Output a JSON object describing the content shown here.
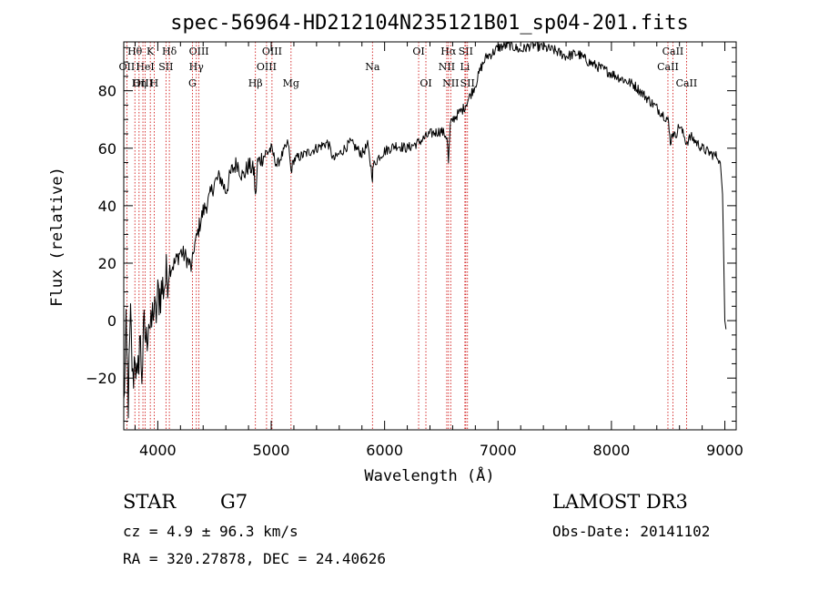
{
  "chart_data": {
    "type": "line",
    "title": "spec-56964-HD212104N235121B01_sp04-201.fits",
    "xlabel": "Wavelength (Å)",
    "ylabel": "Flux (relative)",
    "xlim": [
      3700,
      9100
    ],
    "ylim": [
      -38,
      97
    ],
    "x_ticks": [
      4000,
      5000,
      6000,
      7000,
      8000,
      9000
    ],
    "y_ticks": [
      -20,
      0,
      20,
      40,
      60,
      80
    ],
    "series": [
      {
        "name": "flux",
        "x": [
          3700,
          3720,
          3740,
          3760,
          3780,
          3800,
          3820,
          3840,
          3860,
          3880,
          3900,
          3920,
          3940,
          3960,
          3980,
          4000,
          4050,
          4100,
          4150,
          4200,
          4250,
          4300,
          4320,
          4340,
          4360,
          4400,
          4450,
          4500,
          4550,
          4600,
          4650,
          4700,
          4750,
          4800,
          4850,
          4861,
          4880,
          4950,
          5000,
          5050,
          5100,
          5150,
          5175,
          5200,
          5300,
          5400,
          5500,
          5550,
          5600,
          5650,
          5700,
          5750,
          5800,
          5850,
          5893,
          5900,
          5950,
          6000,
          6100,
          6200,
          6300,
          6400,
          6500,
          6550,
          6563,
          6580,
          6600,
          6650,
          6700,
          6750,
          6800,
          6850,
          6900,
          6950,
          7000,
          7100,
          7200,
          7300,
          7400,
          7500,
          7600,
          7700,
          7800,
          7900,
          8000,
          8100,
          8200,
          8300,
          8400,
          8498,
          8520,
          8542,
          8560,
          8600,
          8662,
          8700,
          8800,
          8880,
          8940,
          8960,
          8980,
          9000,
          9010
        ],
        "y": [
          -30,
          -5,
          -28,
          0,
          -22,
          -10,
          -25,
          -5,
          -18,
          -3,
          -8,
          2,
          -5,
          5,
          0,
          8,
          12,
          18,
          20,
          24,
          22,
          18,
          26,
          28,
          32,
          38,
          42,
          48,
          50,
          45,
          52,
          55,
          50,
          54,
          52,
          42,
          55,
          58,
          60,
          54,
          58,
          62,
          52,
          56,
          58,
          60,
          62,
          56,
          58,
          60,
          62,
          60,
          58,
          61,
          50,
          54,
          57,
          59,
          61,
          60,
          62,
          65,
          66,
          64,
          55,
          68,
          70,
          72,
          74,
          78,
          82,
          88,
          92,
          93,
          95,
          96,
          94,
          96,
          95,
          94,
          92,
          93,
          90,
          88,
          86,
          84,
          82,
          78,
          74,
          70,
          62,
          66,
          64,
          68,
          62,
          64,
          60,
          58,
          57,
          55,
          44,
          0,
          -3
        ]
      }
    ],
    "spectral_lines": [
      {
        "label": "Hθ",
        "w": 3798,
        "row": 0
      },
      {
        "label": "K",
        "w": 3934,
        "row": 0
      },
      {
        "label": "Hδ",
        "w": 4102,
        "row": 0
      },
      {
        "label": "OII",
        "w": 3727,
        "row": 1
      },
      {
        "label": "HeI",
        "w": 3889,
        "row": 1
      },
      {
        "label": "SII",
        "w": 4072,
        "row": 1
      },
      {
        "label": "OIII",
        "w": 3869,
        "row": 2
      },
      {
        "label": "Hη",
        "w": 3835,
        "row": 2
      },
      {
        "label": "H",
        "w": 3968,
        "row": 2
      },
      {
        "label": "OIII",
        "w": 4363,
        "row": 0
      },
      {
        "label": "Hγ",
        "w": 4340,
        "row": 1
      },
      {
        "label": "G",
        "w": 4305,
        "row": 2
      },
      {
        "label": "OIII",
        "w": 5007,
        "row": 0
      },
      {
        "label": "OIII",
        "w": 4959,
        "row": 1
      },
      {
        "label": "Hβ",
        "w": 4861,
        "row": 2
      },
      {
        "label": "Mg",
        "w": 5175,
        "row": 2
      },
      {
        "label": "Na",
        "w": 5893,
        "row": 1
      },
      {
        "label": "OI",
        "w": 6300,
        "row": 0
      },
      {
        "label": "OI",
        "w": 6364,
        "row": 2
      },
      {
        "label": "Hα",
        "w": 6563,
        "row": 0
      },
      {
        "label": "SII",
        "w": 6716,
        "row": 0
      },
      {
        "label": "NII",
        "w": 6548,
        "row": 1
      },
      {
        "label": "Li",
        "w": 6708,
        "row": 1
      },
      {
        "label": "NII",
        "w": 6583,
        "row": 2
      },
      {
        "label": "SII",
        "w": 6731,
        "row": 2
      },
      {
        "label": "CaII",
        "w": 8542,
        "row": 0
      },
      {
        "label": "CaII",
        "w": 8498,
        "row": 1
      },
      {
        "label": "CaII",
        "w": 8662,
        "row": 2
      }
    ]
  },
  "info": {
    "object_type": "STAR",
    "subclass": "G7",
    "survey": "LAMOST DR3",
    "cz": "cz = 4.9 ± 96.3 km/s",
    "obs_date": "Obs-Date: 20141102",
    "coords": "RA = 320.27878, DEC =  24.40626"
  },
  "colors": {
    "spectrum": "#000000",
    "line_markers": "#cc0000",
    "axes": "#000000"
  }
}
